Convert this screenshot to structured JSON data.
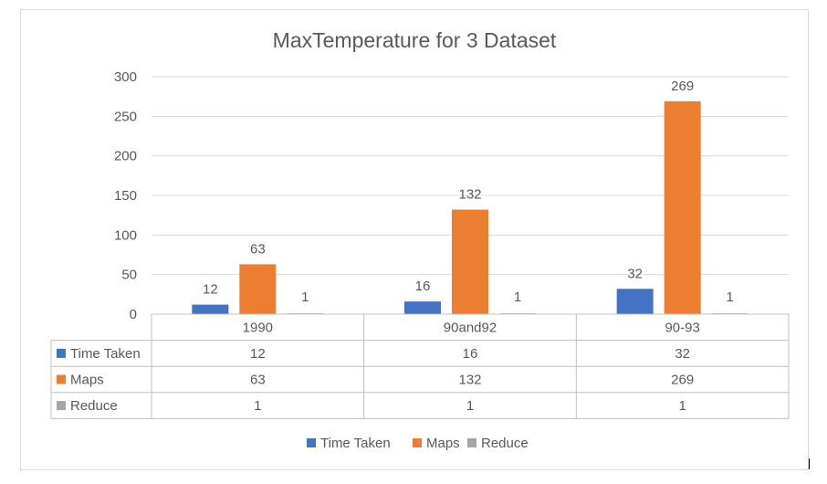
{
  "chart_data": {
    "type": "bar",
    "title": "MaxTemperature for 3 Dataset",
    "categories": [
      "1990",
      "90and92",
      "90-93"
    ],
    "series": [
      {
        "name": "Time Taken",
        "color": "#4472c4",
        "values": [
          12,
          16,
          32
        ]
      },
      {
        "name": "Maps",
        "color": "#ed7d31",
        "values": [
          63,
          132,
          269
        ]
      },
      {
        "name": "Reduce",
        "color": "#a5a5a5",
        "values": [
          1,
          1,
          1
        ]
      }
    ],
    "ylim": [
      0,
      300
    ],
    "yticks": [
      0,
      50,
      100,
      150,
      200,
      250,
      300
    ],
    "grid": true,
    "legend": "bottom",
    "data_table": true,
    "data_labels": true
  },
  "colors": {
    "grid": "#d9d9d9",
    "text": "#595959",
    "title": "#595959",
    "table_border": "#bfbfbf"
  }
}
